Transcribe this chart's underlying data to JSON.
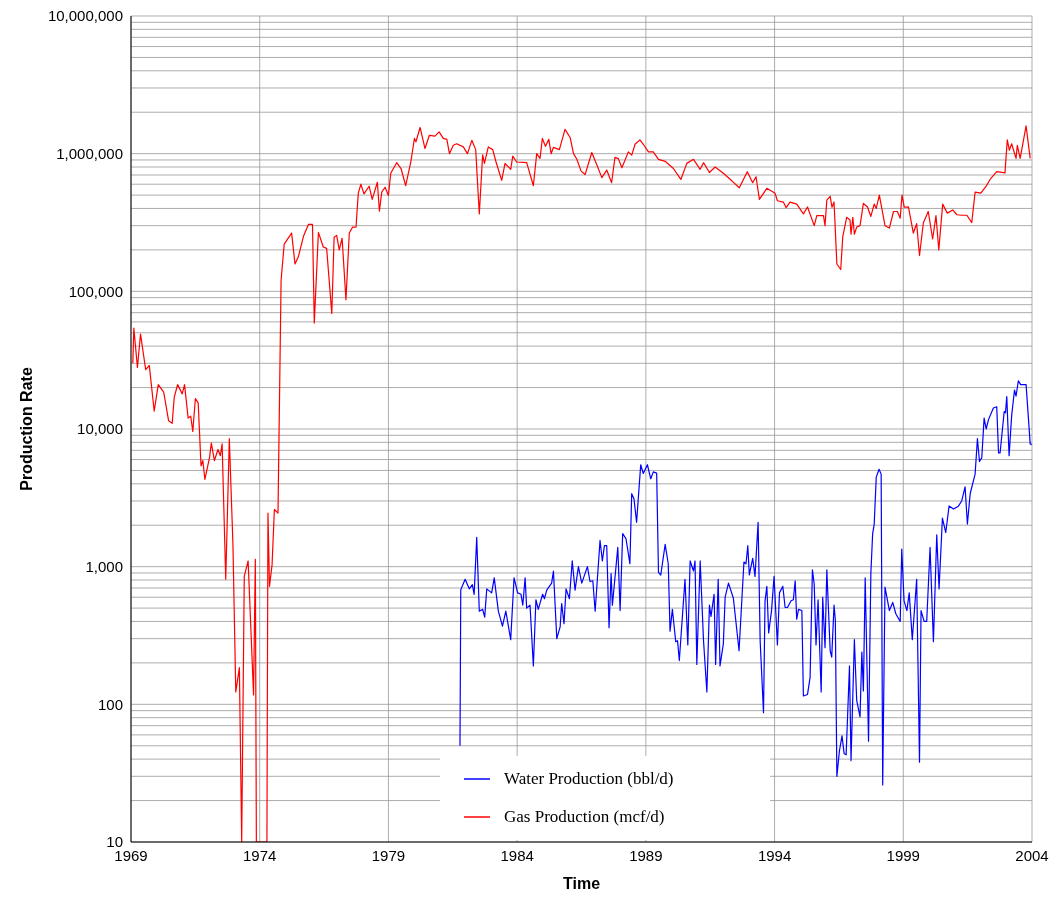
{
  "chart_data": {
    "type": "line",
    "xlabel": "Time",
    "ylabel": "Production Rate",
    "xlim": [
      1969,
      2004
    ],
    "xticks": [
      1969,
      1974,
      1979,
      1984,
      1989,
      1994,
      1999,
      2004
    ],
    "ylim": [
      10,
      10000000
    ],
    "log": "y",
    "grid": true,
    "legend": "bottom",
    "yticks": [
      10,
      {
        "value": 20,
        "label": null
      },
      {
        "value": 30,
        "label": null
      },
      {
        "value": 40,
        "label": null
      },
      {
        "value": 50,
        "label": null
      },
      {
        "value": 60,
        "label": null
      },
      {
        "value": 70,
        "label": null
      },
      {
        "value": 80,
        "label": null
      },
      {
        "value": 90,
        "label": null
      },
      100,
      {
        "value": 200,
        "label": null
      },
      {
        "value": 300,
        "label": null
      },
      {
        "value": 400,
        "label": null
      },
      {
        "value": 500,
        "label": null
      },
      {
        "value": 600,
        "label": null
      },
      {
        "value": 700,
        "label": null
      },
      {
        "value": 800,
        "label": null
      },
      {
        "value": 900,
        "label": null
      },
      {
        "value": 1000,
        "label": "1,000"
      },
      {
        "value": 2000,
        "label": null
      },
      {
        "value": 3000,
        "label": null
      },
      {
        "value": 4000,
        "label": null
      },
      {
        "value": 5000,
        "label": null
      },
      {
        "value": 6000,
        "label": null
      },
      {
        "value": 7000,
        "label": null
      },
      {
        "value": 8000,
        "label": null
      },
      {
        "value": 9000,
        "label": null
      },
      {
        "value": 10000,
        "label": "10,000"
      },
      {
        "value": 20000,
        "label": null
      },
      {
        "value": 30000,
        "label": null
      },
      {
        "value": 40000,
        "label": null
      },
      {
        "value": 50000,
        "label": null
      },
      {
        "value": 60000,
        "label": null
      },
      {
        "value": 70000,
        "label": null
      },
      {
        "value": 80000,
        "label": null
      },
      {
        "value": 90000,
        "label": null
      },
      {
        "value": 100000,
        "label": "100,000"
      },
      {
        "value": 200000,
        "label": null
      },
      {
        "value": 300000,
        "label": null
      },
      {
        "value": 400000,
        "label": null
      },
      {
        "value": 500000,
        "label": null
      },
      {
        "value": 600000,
        "label": null
      },
      {
        "value": 700000,
        "label": null
      },
      {
        "value": 800000,
        "label": null
      },
      {
        "value": 900000,
        "label": null
      },
      {
        "value": 1000000,
        "label": "1,000,000"
      },
      {
        "value": 2000000,
        "label": null
      },
      {
        "value": 3000000,
        "label": null
      },
      {
        "value": 4000000,
        "label": null
      },
      {
        "value": 5000000,
        "label": null
      },
      {
        "value": 6000000,
        "label": null
      },
      {
        "value": 7000000,
        "label": null
      },
      {
        "value": 8000000,
        "label": null
      },
      {
        "value": 9000000,
        "label": null
      },
      {
        "value": 10000000,
        "label": "10,000,000"
      }
    ],
    "series": [
      {
        "name": "Water Production (bbl/d)",
        "color": "#0000ff",
        "x": [
          1981.78,
          1981.81,
          1981.98,
          1982.14,
          1982.26,
          1982.33,
          1982.43,
          1982.53,
          1982.66,
          1982.74,
          1982.82,
          1983.01,
          1983.11,
          1983.27,
          1983.43,
          1983.56,
          1983.75,
          1983.88,
          1984.02,
          1984.15,
          1984.22,
          1984.31,
          1984.37,
          1984.5,
          1984.63,
          1984.73,
          1984.82,
          1984.99,
          1985.06,
          1985.15,
          1985.34,
          1985.41,
          1985.54,
          1985.67,
          1985.73,
          1985.82,
          1985.9,
          1986.03,
          1986.14,
          1986.25,
          1986.38,
          1986.51,
          1986.73,
          1986.83,
          1986.94,
          1987.03,
          1987.22,
          1987.31,
          1987.39,
          1987.48,
          1987.57,
          1987.65,
          1987.7,
          1987.91,
          1988.0,
          1988.1,
          1988.23,
          1988.38,
          1988.45,
          1988.54,
          1988.64,
          1988.8,
          1988.9,
          1989.06,
          1989.19,
          1989.29,
          1989.42,
          1989.49,
          1989.58,
          1989.75,
          1989.87,
          1989.94,
          1990.03,
          1990.16,
          1990.23,
          1990.3,
          1990.52,
          1990.63,
          1990.72,
          1990.85,
          1990.91,
          1990.98,
          1991.11,
          1991.24,
          1991.37,
          1991.47,
          1991.53,
          1991.65,
          1991.71,
          1991.81,
          1991.88,
          1992.01,
          1992.08,
          1992.21,
          1992.4,
          1992.62,
          1992.81,
          1992.89,
          1992.96,
          1993.02,
          1993.15,
          1993.24,
          1993.36,
          1993.44,
          1993.57,
          1993.63,
          1993.7,
          1993.77,
          1993.88,
          1993.98,
          1994.11,
          1994.19,
          1994.32,
          1994.41,
          1994.5,
          1994.64,
          1994.73,
          1994.8,
          1994.86,
          1994.93,
          1995.06,
          1995.12,
          1995.28,
          1995.38,
          1995.47,
          1995.54,
          1995.61,
          1995.69,
          1995.81,
          1995.87,
          1995.96,
          1996.03,
          1996.16,
          1996.22,
          1996.31,
          1996.36,
          1996.42,
          1996.52,
          1996.62,
          1996.7,
          1996.78,
          1996.91,
          1996.97,
          1997.1,
          1997.19,
          1997.32,
          1997.39,
          1997.45,
          1997.52,
          1997.65,
          1997.74,
          1997.81,
          1997.87,
          1997.95,
          1998.06,
          1998.14,
          1998.2,
          1998.29,
          1998.46,
          1998.59,
          1998.71,
          1998.88,
          1998.94,
          1999.03,
          1999.14,
          1999.23,
          1999.35,
          1999.52,
          1999.63,
          1999.69,
          1999.81,
          1999.91,
          2000.04,
          2000.17,
          2000.3,
          2000.39,
          2000.52,
          2000.65,
          2000.78,
          2000.95,
          2001.14,
          2001.27,
          2001.4,
          2001.49,
          2001.6,
          2001.79,
          2001.88,
          2001.96,
          2002.05,
          2002.14,
          2002.22,
          2002.31,
          2002.5,
          2002.63,
          2002.7,
          2002.76,
          2002.92,
          2002.97,
          2003.02,
          2003.11,
          2003.21,
          2003.32,
          2003.38,
          2003.47,
          2003.56,
          2003.69,
          2003.77,
          2003.93,
          2003.99
        ],
        "values": [
          50,
          680,
          810,
          690,
          740,
          630,
          1630,
          475,
          490,
          430,
          690,
          645,
          830,
          475,
          370,
          475,
          295,
          830,
          645,
          630,
          525,
          830,
          500,
          525,
          190,
          575,
          490,
          630,
          585,
          675,
          760,
          930,
          300,
          365,
          540,
          385,
          690,
          585,
          1100,
          675,
          1000,
          760,
          1000,
          780,
          790,
          475,
          1550,
          1100,
          1420,
          1420,
          360,
          890,
          525,
          1380,
          480,
          1740,
          1590,
          1050,
          3390,
          3100,
          2100,
          5500,
          4750,
          5500,
          4350,
          4880,
          4780,
          910,
          870,
          1450,
          1050,
          340,
          490,
          285,
          290,
          208,
          810,
          270,
          1100,
          930,
          1100,
          195,
          1100,
          290,
          123,
          525,
          435,
          630,
          195,
          810,
          190,
          275,
          600,
          760,
          590,
          245,
          1080,
          1050,
          1420,
          870,
          1150,
          850,
          2100,
          290,
          87,
          565,
          720,
          330,
          475,
          850,
          270,
          645,
          720,
          505,
          505,
          565,
          575,
          790,
          415,
          490,
          480,
          115,
          118,
          157,
          950,
          745,
          270,
          575,
          123,
          600,
          258,
          950,
          245,
          220,
          525,
          410,
          30,
          46,
          59,
          44,
          43,
          190,
          39,
          295,
          107,
          81,
          240,
          125,
          830,
          54,
          890,
          1740,
          2030,
          4470,
          5100,
          4700,
          26,
          710,
          480,
          550,
          455,
          400,
          1340,
          565,
          480,
          645,
          295,
          810,
          38,
          480,
          400,
          400,
          1380,
          285,
          1700,
          690,
          2250,
          1770,
          2760,
          2620,
          2750,
          3000,
          3800,
          2040,
          3400,
          4700,
          8500,
          5800,
          6200,
          12000,
          10000,
          11700,
          14200,
          14500,
          6700,
          6700,
          13400,
          13100,
          17200,
          6400,
          12500,
          19200,
          17300,
          22400,
          21000,
          21000,
          21000,
          7800,
          7700
        ]
      },
      {
        "name": "Gas Production (mcf/d)",
        "color": "#ff0000",
        "x": [
          1969.07,
          1969.11,
          1969.25,
          1969.37,
          1969.57,
          1969.71,
          1969.9,
          1970.06,
          1970.27,
          1970.36,
          1970.46,
          1970.6,
          1970.68,
          1970.81,
          1970.99,
          1971.08,
          1971.22,
          1971.32,
          1971.4,
          1971.5,
          1971.61,
          1971.72,
          1971.79,
          1971.87,
          1972.05,
          1972.12,
          1972.24,
          1972.38,
          1972.47,
          1972.54,
          1972.68,
          1972.82,
          1972.96,
          1973.07,
          1973.21,
          1973.3,
          1973.4,
          1973.55,
          1973.76,
          1973.83,
          1973.87,
          1974.28,
          1974.32,
          1974.38,
          1974.48,
          1974.57,
          1974.71,
          1974.83,
          1974.95,
          1975.24,
          1975.37,
          1975.5,
          1975.7,
          1975.89,
          1976.05,
          1976.12,
          1976.28,
          1976.47,
          1976.6,
          1976.8,
          1976.89,
          1976.99,
          1977.09,
          1977.2,
          1977.35,
          1977.48,
          1977.61,
          1977.74,
          1977.83,
          1977.93,
          1978.05,
          1978.25,
          1978.37,
          1978.57,
          1978.65,
          1978.74,
          1978.87,
          1979.0,
          1979.09,
          1979.32,
          1979.49,
          1979.67,
          1979.87,
          1980.01,
          1980.07,
          1980.23,
          1980.42,
          1980.59,
          1980.81,
          1980.97,
          1981.13,
          1981.27,
          1981.37,
          1981.52,
          1981.65,
          1981.91,
          1982.07,
          1982.24,
          1982.39,
          1982.53,
          1982.66,
          1982.73,
          1982.88,
          1983.05,
          1983.18,
          1983.4,
          1983.53,
          1983.75,
          1983.83,
          1983.98,
          1984.37,
          1984.63,
          1984.76,
          1984.89,
          1984.98,
          1985.1,
          1985.23,
          1985.32,
          1985.41,
          1985.64,
          1985.86,
          1986.06,
          1986.19,
          1986.32,
          1986.48,
          1986.64,
          1986.9,
          1987.09,
          1987.29,
          1987.48,
          1987.67,
          1987.8,
          1987.93,
          1988.07,
          1988.32,
          1988.45,
          1988.58,
          1988.77,
          1988.9,
          1989.1,
          1989.29,
          1989.49,
          1989.75,
          1990.07,
          1990.36,
          1990.59,
          1990.85,
          1991.11,
          1991.24,
          1991.47,
          1991.69,
          1992.01,
          1992.34,
          1992.63,
          1992.94,
          1993.15,
          1993.28,
          1993.41,
          1993.7,
          1994.02,
          1994.11,
          1994.34,
          1994.45,
          1994.6,
          1994.86,
          1995.12,
          1995.28,
          1995.54,
          1995.64,
          1995.9,
          1995.96,
          1996.03,
          1996.16,
          1996.23,
          1996.31,
          1996.42,
          1996.57,
          1996.65,
          1996.8,
          1996.93,
          1996.97,
          1997.04,
          1997.1,
          1997.19,
          1997.32,
          1997.45,
          1997.61,
          1997.74,
          1997.87,
          1997.95,
          1998.07,
          1998.29,
          1998.46,
          1998.62,
          1998.77,
          1998.88,
          1998.95,
          1999.04,
          1999.2,
          1999.39,
          1999.52,
          1999.63,
          1999.78,
          1999.97,
          2000.14,
          2000.27,
          2000.38,
          2000.53,
          2000.71,
          2000.92,
          2001.08,
          2001.27,
          2001.47,
          2001.66,
          2001.79,
          2002.01,
          2002.22,
          2002.37,
          2002.63,
          2002.95,
          2003.04,
          2003.12,
          2003.21,
          2003.38,
          2003.43,
          2003.54,
          2003.77,
          2003.93
        ],
        "values": [
          30000,
          54000,
          28000,
          49000,
          27000,
          29000,
          13500,
          21000,
          18500,
          14800,
          11500,
          11000,
          17000,
          21000,
          18000,
          21000,
          12000,
          12400,
          9600,
          16600,
          15500,
          5400,
          5900,
          4300,
          6200,
          7900,
          5900,
          7100,
          6400,
          7800,
          810,
          8500,
          1450,
          123,
          185,
          10,
          850,
          1100,
          117,
          1130,
          10,
          10,
          2450,
          720,
          1030,
          2600,
          2450,
          120000,
          220000,
          265000,
          158000,
          178000,
          251000,
          306000,
          306000,
          59000,
          268000,
          210000,
          205000,
          69000,
          247000,
          255000,
          200000,
          243000,
          87000,
          265000,
          293000,
          292000,
          517000,
          600000,
          510000,
          580000,
          465000,
          620000,
          382000,
          526000,
          570000,
          497000,
          720000,
          860000,
          780000,
          585000,
          870000,
          1290000,
          1220000,
          1550000,
          1090000,
          1360000,
          1340000,
          1440000,
          1290000,
          1270000,
          1000000,
          1150000,
          1180000,
          1120000,
          1000000,
          1250000,
          1070000,
          365000,
          980000,
          850000,
          1120000,
          1070000,
          870000,
          640000,
          850000,
          770000,
          960000,
          870000,
          860000,
          585000,
          1000000,
          925000,
          1290000,
          1130000,
          1270000,
          1000000,
          1110000,
          1070000,
          1500000,
          1310000,
          1000000,
          910000,
          750000,
          705000,
          1020000,
          835000,
          670000,
          760000,
          615000,
          940000,
          920000,
          790000,
          1030000,
          975000,
          1170000,
          1260000,
          1170000,
          1030000,
          1030000,
          910000,
          880000,
          780000,
          650000,
          850000,
          910000,
          770000,
          860000,
          730000,
          800000,
          720000,
          635000,
          565000,
          740000,
          615000,
          680000,
          465000,
          560000,
          515000,
          455000,
          445000,
          405000,
          445000,
          430000,
          365000,
          410000,
          300000,
          355000,
          355000,
          300000,
          460000,
          490000,
          408000,
          445000,
          158000,
          144000,
          250000,
          345000,
          330000,
          260000,
          345000,
          260000,
          293000,
          300000,
          435000,
          410000,
          350000,
          430000,
          400000,
          500000,
          300000,
          288000,
          380000,
          380000,
          340000,
          500000,
          408000,
          410000,
          265000,
          310000,
          182000,
          315000,
          380000,
          240000,
          355000,
          200000,
          430000,
          370000,
          390000,
          360000,
          357000,
          357000,
          316000,
          526000,
          517000,
          580000,
          650000,
          740000,
          725000,
          1260000,
          1060000,
          1180000,
          925000,
          1150000,
          925000,
          1590000,
          925000
        ]
      }
    ]
  }
}
